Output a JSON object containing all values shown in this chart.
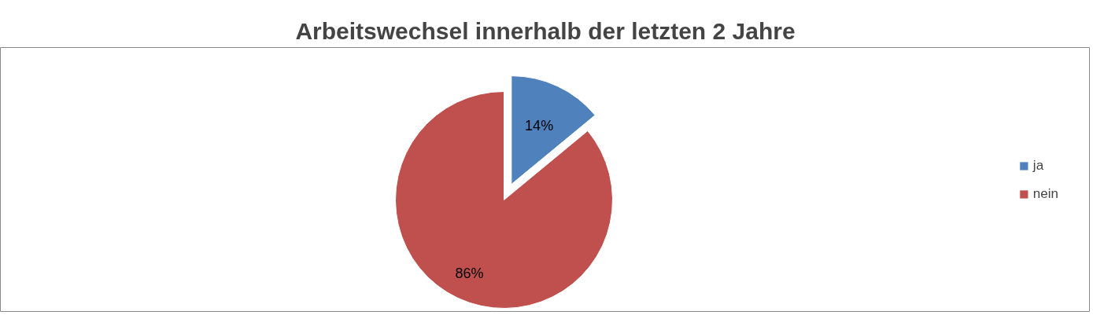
{
  "chart_data": {
    "type": "pie",
    "title": "Arbeitswechsel innerhalb der letzten 2 Jahre",
    "categories": [
      "ja",
      "nein"
    ],
    "values": [
      14,
      86
    ],
    "colors": [
      "#4f81bd",
      "#c0504d"
    ],
    "value_labels": [
      "14%",
      "86%"
    ],
    "legend": "right"
  }
}
